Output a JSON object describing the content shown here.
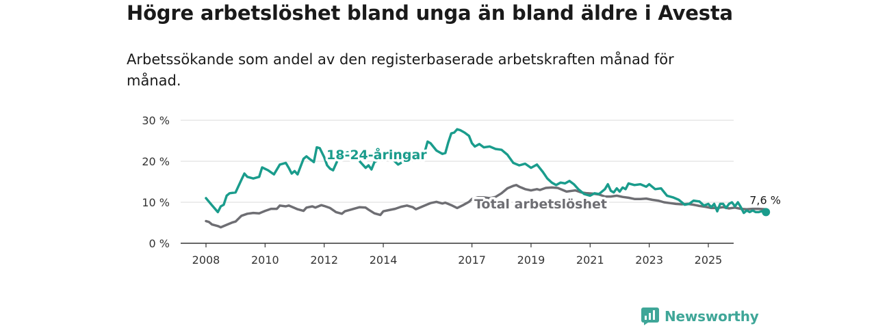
{
  "title": "Högre arbetslöshet bland unga än bland äldre i Avesta",
  "subtitle": "Arbetssökande som andel av den registerbaserade arbetskraften månad för månad.",
  "brand": {
    "name": "Newsworthy",
    "icon": "newsworthy-logo-icon"
  },
  "colors": {
    "youth": "#1a9c8c",
    "total": "#6e6e73",
    "grid": "#d9d9d9",
    "axis": "#333333"
  },
  "chart_data": {
    "type": "line",
    "title": "Högre arbetslöshet bland unga än bland äldre i Avesta",
    "subtitle": "Arbetssökande som andel av den registerbaserade arbetskraften månad för månad.",
    "xlabel": "",
    "ylabel": "",
    "xlim": [
      2007.85,
      2026.0
    ],
    "ylim": [
      0,
      30
    ],
    "x_ticks": [
      2008,
      2010,
      2012,
      2014,
      2017,
      2019,
      2021,
      2023,
      2025
    ],
    "x_tick_labels": [
      "2008",
      "2010",
      "2012",
      "2014",
      "2017",
      "2019",
      "2021",
      "2023",
      "2025"
    ],
    "y_ticks": [
      0,
      10,
      20,
      30
    ],
    "y_tick_labels": [
      "0 %",
      "10 %",
      "20 %",
      "30 %"
    ],
    "grid": "horizontal",
    "legend": "none (direct labels)",
    "end_value_label": "7,6 %",
    "series": [
      {
        "name": "18-24-åringar",
        "color": "#1a9c8c",
        "points": [
          [
            2008.0,
            11.0
          ],
          [
            2008.2,
            9.3
          ],
          [
            2008.4,
            7.6
          ],
          [
            2008.5,
            9.0
          ],
          [
            2008.6,
            9.4
          ],
          [
            2008.7,
            11.6
          ],
          [
            2008.8,
            12.2
          ],
          [
            2009.0,
            12.4
          ],
          [
            2009.2,
            15.5
          ],
          [
            2009.3,
            17.0
          ],
          [
            2009.4,
            16.2
          ],
          [
            2009.6,
            15.8
          ],
          [
            2009.8,
            16.2
          ],
          [
            2009.9,
            18.5
          ],
          [
            2010.1,
            17.8
          ],
          [
            2010.3,
            16.8
          ],
          [
            2010.5,
            19.2
          ],
          [
            2010.7,
            19.6
          ],
          [
            2010.8,
            18.4
          ],
          [
            2010.9,
            17.0
          ],
          [
            2011.0,
            17.6
          ],
          [
            2011.1,
            16.8
          ],
          [
            2011.3,
            20.6
          ],
          [
            2011.4,
            21.2
          ],
          [
            2011.5,
            20.6
          ],
          [
            2011.65,
            19.8
          ],
          [
            2011.75,
            23.4
          ],
          [
            2011.85,
            23.2
          ],
          [
            2012.0,
            21.0
          ],
          [
            2012.1,
            19.0
          ],
          [
            2012.2,
            18.2
          ],
          [
            2012.3,
            17.8
          ],
          [
            2012.4,
            19.4
          ],
          [
            2012.5,
            21.0
          ],
          [
            2012.7,
            22.0
          ],
          [
            2012.8,
            22.2
          ],
          [
            2012.9,
            22.0
          ],
          [
            2013.0,
            21.6
          ],
          [
            2013.2,
            20.0
          ],
          [
            2013.4,
            18.4
          ],
          [
            2013.5,
            19.0
          ],
          [
            2013.6,
            18.0
          ],
          [
            2013.7,
            19.8
          ],
          [
            2014.0,
            21.0
          ],
          [
            2014.3,
            20.6
          ],
          [
            2014.5,
            19.2
          ],
          [
            2014.6,
            19.6
          ],
          [
            2014.8,
            21.5
          ],
          [
            2015.0,
            21.8
          ],
          [
            2015.2,
            22.4
          ],
          [
            2015.4,
            22.2
          ],
          [
            2015.5,
            24.8
          ],
          [
            2015.6,
            24.4
          ],
          [
            2015.8,
            22.6
          ],
          [
            2016.0,
            21.8
          ],
          [
            2016.1,
            22.0
          ],
          [
            2016.2,
            24.6
          ],
          [
            2016.3,
            26.8
          ],
          [
            2016.4,
            27.0
          ],
          [
            2016.5,
            27.8
          ],
          [
            2016.6,
            27.6
          ],
          [
            2016.75,
            27.0
          ],
          [
            2016.9,
            26.2
          ],
          [
            2017.0,
            24.4
          ],
          [
            2017.1,
            23.6
          ],
          [
            2017.25,
            24.2
          ],
          [
            2017.4,
            23.4
          ],
          [
            2017.6,
            23.6
          ],
          [
            2017.8,
            23.0
          ],
          [
            2018.0,
            22.8
          ],
          [
            2018.2,
            21.6
          ],
          [
            2018.4,
            19.6
          ],
          [
            2018.6,
            19.0
          ],
          [
            2018.8,
            19.4
          ],
          [
            2019.0,
            18.4
          ],
          [
            2019.2,
            19.2
          ],
          [
            2019.4,
            17.4
          ],
          [
            2019.55,
            15.8
          ],
          [
            2019.7,
            14.8
          ],
          [
            2019.85,
            14.2
          ],
          [
            2020.0,
            14.8
          ],
          [
            2020.15,
            14.6
          ],
          [
            2020.3,
            15.2
          ],
          [
            2020.45,
            14.4
          ],
          [
            2020.6,
            13.2
          ],
          [
            2020.8,
            12.0
          ],
          [
            2021.0,
            11.6
          ],
          [
            2021.15,
            12.2
          ],
          [
            2021.3,
            12.0
          ],
          [
            2021.5,
            13.2
          ],
          [
            2021.6,
            14.4
          ],
          [
            2021.7,
            12.8
          ],
          [
            2021.8,
            12.4
          ],
          [
            2021.9,
            13.4
          ],
          [
            2022.0,
            12.6
          ],
          [
            2022.1,
            13.6
          ],
          [
            2022.2,
            13.2
          ],
          [
            2022.3,
            14.6
          ],
          [
            2022.5,
            14.2
          ],
          [
            2022.7,
            14.4
          ],
          [
            2022.9,
            13.8
          ],
          [
            2023.0,
            14.4
          ],
          [
            2023.2,
            13.2
          ],
          [
            2023.4,
            13.4
          ],
          [
            2023.6,
            11.6
          ],
          [
            2023.8,
            11.2
          ],
          [
            2024.0,
            10.6
          ],
          [
            2024.2,
            9.4
          ],
          [
            2024.35,
            9.6
          ],
          [
            2024.5,
            10.4
          ],
          [
            2024.7,
            10.2
          ],
          [
            2024.85,
            9.2
          ],
          [
            2025.0,
            9.6
          ],
          [
            2025.1,
            8.8
          ],
          [
            2025.2,
            9.6
          ],
          [
            2025.3,
            7.8
          ],
          [
            2025.4,
            9.6
          ],
          [
            2025.5,
            9.6
          ],
          [
            2025.6,
            8.6
          ],
          [
            2025.7,
            9.6
          ],
          [
            2025.8,
            10.0
          ],
          [
            2025.9,
            9.0
          ],
          [
            2026.0,
            10.0
          ],
          [
            2026.1,
            8.8
          ],
          [
            2026.2,
            7.4
          ],
          [
            2026.3,
            8.0
          ],
          [
            2026.4,
            7.6
          ],
          [
            2026.5,
            8.0
          ],
          [
            2026.6,
            7.6
          ],
          [
            2026.7,
            7.6
          ],
          [
            2026.8,
            7.8
          ],
          [
            2026.95,
            7.6
          ]
        ]
      },
      {
        "name": "Total arbetslöshet",
        "color": "#6e6e73",
        "points": [
          [
            2008.0,
            5.4
          ],
          [
            2008.1,
            5.2
          ],
          [
            2008.2,
            4.6
          ],
          [
            2008.4,
            4.2
          ],
          [
            2008.5,
            3.9
          ],
          [
            2008.7,
            4.5
          ],
          [
            2008.9,
            5.1
          ],
          [
            2009.0,
            5.3
          ],
          [
            2009.2,
            6.7
          ],
          [
            2009.4,
            7.2
          ],
          [
            2009.6,
            7.4
          ],
          [
            2009.8,
            7.3
          ],
          [
            2010.0,
            7.9
          ],
          [
            2010.2,
            8.4
          ],
          [
            2010.4,
            8.4
          ],
          [
            2010.5,
            9.2
          ],
          [
            2010.7,
            9.0
          ],
          [
            2010.8,
            9.2
          ],
          [
            2011.0,
            8.6
          ],
          [
            2011.1,
            8.3
          ],
          [
            2011.3,
            7.9
          ],
          [
            2011.4,
            8.7
          ],
          [
            2011.6,
            9.0
          ],
          [
            2011.7,
            8.7
          ],
          [
            2011.9,
            9.3
          ],
          [
            2012.0,
            9.1
          ],
          [
            2012.2,
            8.6
          ],
          [
            2012.4,
            7.6
          ],
          [
            2012.6,
            7.2
          ],
          [
            2012.7,
            7.8
          ],
          [
            2012.9,
            8.2
          ],
          [
            2013.0,
            8.4
          ],
          [
            2013.2,
            8.8
          ],
          [
            2013.4,
            8.7
          ],
          [
            2013.5,
            8.2
          ],
          [
            2013.7,
            7.3
          ],
          [
            2013.9,
            6.9
          ],
          [
            2014.0,
            7.8
          ],
          [
            2014.2,
            8.1
          ],
          [
            2014.4,
            8.4
          ],
          [
            2014.6,
            8.9
          ],
          [
            2014.8,
            9.2
          ],
          [
            2015.0,
            8.8
          ],
          [
            2015.1,
            8.3
          ],
          [
            2015.3,
            8.9
          ],
          [
            2015.5,
            9.5
          ],
          [
            2015.6,
            9.8
          ],
          [
            2015.8,
            10.1
          ],
          [
            2016.0,
            9.7
          ],
          [
            2016.1,
            9.9
          ],
          [
            2016.3,
            9.3
          ],
          [
            2016.5,
            8.6
          ],
          [
            2016.7,
            9.3
          ],
          [
            2016.9,
            10.1
          ],
          [
            2017.0,
            10.8
          ],
          [
            2017.2,
            11.2
          ],
          [
            2017.4,
            11.2
          ],
          [
            2017.6,
            11.0
          ],
          [
            2017.8,
            11.3
          ],
          [
            2018.0,
            12.2
          ],
          [
            2018.2,
            13.4
          ],
          [
            2018.4,
            14.0
          ],
          [
            2018.5,
            14.2
          ],
          [
            2018.6,
            13.8
          ],
          [
            2018.8,
            13.2
          ],
          [
            2019.0,
            12.9
          ],
          [
            2019.2,
            13.2
          ],
          [
            2019.3,
            13.0
          ],
          [
            2019.5,
            13.5
          ],
          [
            2019.7,
            13.6
          ],
          [
            2019.9,
            13.5
          ],
          [
            2020.0,
            13.2
          ],
          [
            2020.2,
            12.6
          ],
          [
            2020.4,
            12.8
          ],
          [
            2020.5,
            12.9
          ],
          [
            2020.7,
            12.4
          ],
          [
            2020.9,
            12.2
          ],
          [
            2021.1,
            12.1
          ],
          [
            2021.3,
            11.9
          ],
          [
            2021.5,
            11.4
          ],
          [
            2021.7,
            11.4
          ],
          [
            2021.9,
            11.6
          ],
          [
            2022.1,
            11.3
          ],
          [
            2022.3,
            11.1
          ],
          [
            2022.5,
            10.8
          ],
          [
            2022.7,
            10.8
          ],
          [
            2022.9,
            10.9
          ],
          [
            2023.1,
            10.6
          ],
          [
            2023.3,
            10.4
          ],
          [
            2023.5,
            10.0
          ],
          [
            2023.7,
            9.8
          ],
          [
            2023.9,
            9.6
          ],
          [
            2024.1,
            9.5
          ],
          [
            2024.3,
            9.6
          ],
          [
            2024.5,
            9.4
          ],
          [
            2024.7,
            9.1
          ],
          [
            2024.9,
            8.9
          ],
          [
            2025.1,
            8.6
          ],
          [
            2025.3,
            8.6
          ],
          [
            2025.5,
            8.8
          ],
          [
            2025.7,
            8.5
          ],
          [
            2025.9,
            8.7
          ],
          [
            2026.1,
            8.4
          ],
          [
            2026.3,
            8.3
          ],
          [
            2026.5,
            8.4
          ],
          [
            2026.7,
            8.4
          ],
          [
            2026.95,
            8.3
          ]
        ]
      }
    ]
  }
}
